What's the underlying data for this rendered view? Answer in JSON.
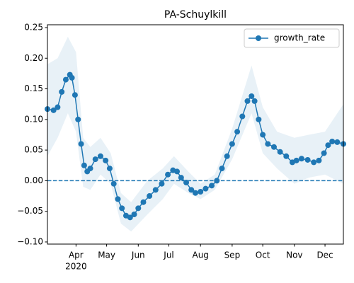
{
  "chart_data": {
    "type": "line",
    "title": "PA-Schuylkill",
    "x": [
      "2020-03-04",
      "2020-03-10",
      "2020-03-14",
      "2020-03-18",
      "2020-03-22",
      "2020-03-26",
      "2020-03-28",
      "2020-03-31",
      "2020-04-03",
      "2020-04-06",
      "2020-04-09",
      "2020-04-12",
      "2020-04-15",
      "2020-04-20",
      "2020-04-25",
      "2020-04-30",
      "2020-05-04",
      "2020-05-08",
      "2020-05-12",
      "2020-05-16",
      "2020-05-20",
      "2020-05-24",
      "2020-05-28",
      "2020-06-01",
      "2020-06-06",
      "2020-06-12",
      "2020-06-18",
      "2020-06-24",
      "2020-06-30",
      "2020-07-05",
      "2020-07-09",
      "2020-07-13",
      "2020-07-18",
      "2020-07-23",
      "2020-07-27",
      "2020-08-01",
      "2020-08-06",
      "2020-08-12",
      "2020-08-17",
      "2020-08-22",
      "2020-08-27",
      "2020-09-01",
      "2020-09-06",
      "2020-09-11",
      "2020-09-16",
      "2020-09-20",
      "2020-09-23",
      "2020-09-27",
      "2020-10-01",
      "2020-10-06",
      "2020-10-12",
      "2020-10-18",
      "2020-10-24",
      "2020-10-30",
      "2020-11-03",
      "2020-11-08",
      "2020-11-14",
      "2020-11-20",
      "2020-11-25",
      "2020-11-30",
      "2020-12-04",
      "2020-12-08",
      "2020-12-13",
      "2020-12-19"
    ],
    "series": [
      {
        "name": "growth_rate",
        "color": "#1f77b4",
        "values": [
          0.117,
          0.115,
          0.12,
          0.145,
          0.165,
          0.173,
          0.168,
          0.14,
          0.1,
          0.06,
          0.025,
          0.015,
          0.02,
          0.035,
          0.04,
          0.033,
          0.02,
          -0.005,
          -0.03,
          -0.045,
          -0.057,
          -0.06,
          -0.055,
          -0.045,
          -0.035,
          -0.025,
          -0.015,
          -0.005,
          0.01,
          0.017,
          0.015,
          0.005,
          -0.003,
          -0.015,
          -0.02,
          -0.018,
          -0.013,
          -0.008,
          0.0,
          0.02,
          0.04,
          0.06,
          0.08,
          0.105,
          0.13,
          0.138,
          0.13,
          0.1,
          0.075,
          0.06,
          0.055,
          0.047,
          0.04,
          0.03,
          0.033,
          0.036,
          0.034,
          0.03,
          0.033,
          0.045,
          0.058,
          0.064,
          0.063,
          0.06
        ]
      }
    ],
    "band": {
      "color": "#1f77b4",
      "x": [
        "2020-03-04",
        "2020-03-14",
        "2020-03-24",
        "2020-04-01",
        "2020-04-08",
        "2020-04-15",
        "2020-04-25",
        "2020-05-05",
        "2020-05-15",
        "2020-05-25",
        "2020-06-10",
        "2020-06-25",
        "2020-07-06",
        "2020-07-20",
        "2020-08-01",
        "2020-08-15",
        "2020-09-01",
        "2020-09-20",
        "2020-10-01",
        "2020-10-15",
        "2020-11-01",
        "2020-11-15",
        "2020-12-01",
        "2020-12-19"
      ],
      "lower": [
        0.04,
        0.07,
        0.11,
        0.08,
        -0.01,
        -0.015,
        0.01,
        -0.005,
        -0.07,
        -0.083,
        -0.055,
        -0.03,
        -0.005,
        -0.02,
        -0.03,
        -0.015,
        0.035,
        0.11,
        0.045,
        0.02,
        -0.005,
        0.005,
        0.01,
        -0.005
      ],
      "upper": [
        0.19,
        0.2,
        0.235,
        0.21,
        0.07,
        0.055,
        0.07,
        0.045,
        -0.02,
        -0.035,
        0.0,
        0.02,
        0.04,
        0.015,
        -0.005,
        0.01,
        0.085,
        0.188,
        0.12,
        0.08,
        0.07,
        0.075,
        0.08,
        0.125
      ]
    },
    "hline": {
      "value": 0,
      "color": "#1f77b4"
    },
    "xlim": [
      "2020-03-04",
      "2020-12-19"
    ],
    "xticks": [
      {
        "value": "2020-04-01",
        "label": "Apr"
      },
      {
        "value": "2020-05-01",
        "label": "May"
      },
      {
        "value": "2020-06-01",
        "label": "Jun"
      },
      {
        "value": "2020-07-01",
        "label": "Jul"
      },
      {
        "value": "2020-08-01",
        "label": "Aug"
      },
      {
        "value": "2020-09-01",
        "label": "Sep"
      },
      {
        "value": "2020-10-01",
        "label": "Oct"
      },
      {
        "value": "2020-11-01",
        "label": "Nov"
      },
      {
        "value": "2020-12-01",
        "label": "Dec"
      }
    ],
    "x_offset_label": "2020",
    "ylim": [
      -0.1035,
      0.2546
    ],
    "yticks": [
      {
        "value": -0.1,
        "label": "−0.10"
      },
      {
        "value": -0.05,
        "label": "−0.05"
      },
      {
        "value": 0,
        "label": "0.00"
      },
      0.05,
      {
        "value": 0.1,
        "label": "0.10"
      },
      0.15,
      {
        "value": 0.2,
        "label": "0.20"
      },
      0.25
    ],
    "legend": "upper right"
  }
}
